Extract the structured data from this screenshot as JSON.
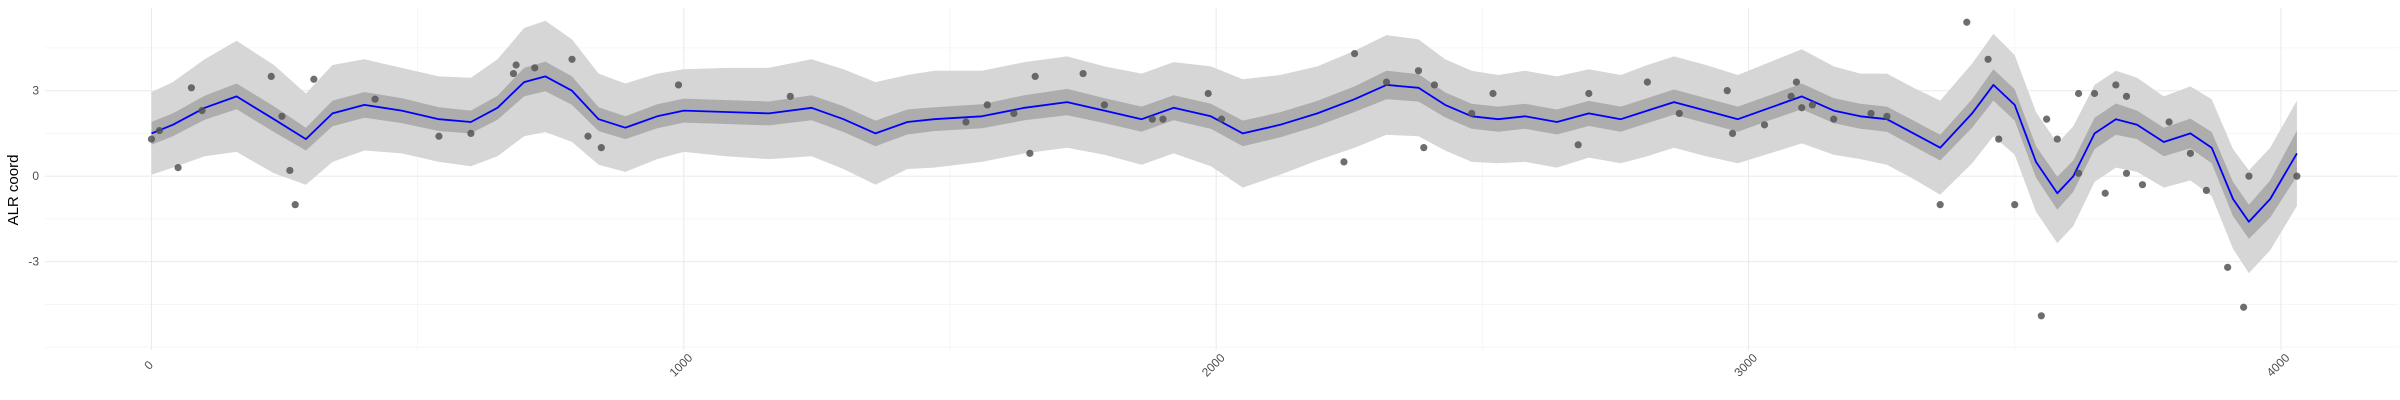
{
  "chart_data": {
    "type": "line",
    "title": "",
    "xlabel": "",
    "ylabel": "ALR coord",
    "xlim": [
      -200,
      4220
    ],
    "ylim": [
      -6.1,
      5.9
    ],
    "x_ticks": [
      0,
      1000,
      2000,
      3000,
      4000
    ],
    "y_ticks": [
      -3,
      0,
      3
    ],
    "grid": true,
    "legend": "none",
    "colors": {
      "line": "#0000ff",
      "inner_band": "#adadad",
      "outer_band": "#d6d6d6",
      "points": "#555555"
    },
    "line_series": {
      "x": [
        0,
        40,
        100,
        160,
        230,
        290,
        340,
        400,
        470,
        540,
        600,
        650,
        700,
        740,
        790,
        840,
        890,
        950,
        1000,
        1080,
        1160,
        1240,
        1300,
        1360,
        1420,
        1470,
        1560,
        1640,
        1720,
        1790,
        1860,
        1920,
        1990,
        2050,
        2120,
        2190,
        2260,
        2320,
        2380,
        2430,
        2480,
        2530,
        2580,
        2640,
        2700,
        2760,
        2810,
        2860,
        2920,
        2980,
        3040,
        3100,
        3160,
        3210,
        3260,
        3310,
        3360,
        3420,
        3460,
        3500,
        3540,
        3580,
        3610,
        3650,
        3690,
        3730,
        3780,
        3830,
        3870,
        3910,
        3940,
        3980,
        4030
      ],
      "y": [
        1.5,
        1.8,
        2.4,
        2.8,
        2.0,
        1.3,
        2.2,
        2.5,
        2.3,
        2.0,
        1.9,
        2.4,
        3.3,
        3.5,
        3.0,
        2.0,
        1.7,
        2.1,
        2.3,
        2.25,
        2.2,
        2.4,
        2.0,
        1.5,
        1.9,
        2.0,
        2.1,
        2.4,
        2.6,
        2.3,
        2.0,
        2.4,
        2.1,
        1.5,
        1.8,
        2.2,
        2.7,
        3.2,
        3.1,
        2.5,
        2.1,
        2.0,
        2.1,
        1.9,
        2.2,
        2.0,
        2.3,
        2.6,
        2.3,
        2.0,
        2.4,
        2.8,
        2.3,
        2.1,
        2.0,
        1.5,
        1.0,
        2.2,
        3.2,
        2.5,
        0.5,
        -0.6,
        0.0,
        1.5,
        2.0,
        1.8,
        1.2,
        1.5,
        1.0,
        -0.8,
        -1.6,
        -0.8,
        0.8
      ]
    },
    "inner_half_width": [
      0.4,
      0.4,
      0.42,
      0.45,
      0.45,
      0.4,
      0.45,
      0.45,
      0.44,
      0.42,
      0.4,
      0.42,
      0.5,
      0.52,
      0.5,
      0.42,
      0.4,
      0.42,
      0.42,
      0.42,
      0.42,
      0.44,
      0.45,
      0.45,
      0.44,
      0.42,
      0.42,
      0.44,
      0.46,
      0.44,
      0.44,
      0.44,
      0.44,
      0.45,
      0.44,
      0.44,
      0.45,
      0.5,
      0.48,
      0.44,
      0.44,
      0.44,
      0.44,
      0.44,
      0.44,
      0.44,
      0.44,
      0.44,
      0.44,
      0.44,
      0.44,
      0.45,
      0.44,
      0.44,
      0.44,
      0.45,
      0.45,
      0.5,
      0.55,
      0.55,
      0.55,
      0.58,
      0.55,
      0.55,
      0.55,
      0.5,
      0.5,
      0.52,
      0.55,
      0.6,
      0.6,
      0.65,
      0.8
    ],
    "outer_half_width": [
      1.45,
      1.5,
      1.7,
      1.95,
      1.9,
      1.6,
      1.7,
      1.6,
      1.5,
      1.5,
      1.55,
      1.7,
      1.9,
      1.95,
      1.8,
      1.6,
      1.55,
      1.5,
      1.45,
      1.55,
      1.6,
      1.7,
      1.75,
      1.8,
      1.65,
      1.7,
      1.6,
      1.6,
      1.6,
      1.55,
      1.6,
      1.6,
      1.75,
      1.9,
      1.75,
      1.65,
      1.7,
      1.75,
      1.7,
      1.6,
      1.6,
      1.55,
      1.6,
      1.6,
      1.55,
      1.55,
      1.6,
      1.6,
      1.6,
      1.55,
      1.6,
      1.65,
      1.55,
      1.5,
      1.6,
      1.6,
      1.65,
      1.75,
      1.8,
      1.75,
      1.75,
      1.75,
      1.75,
      1.7,
      1.7,
      1.65,
      1.6,
      1.65,
      1.7,
      1.75,
      1.8,
      1.8,
      1.85
    ],
    "points": {
      "x": [
        0,
        15,
        50,
        75,
        95,
        225,
        245,
        260,
        270,
        305,
        420,
        540,
        600,
        680,
        685,
        720,
        790,
        820,
        845,
        990,
        1200,
        1530,
        1570,
        1620,
        1650,
        1660,
        1750,
        1790,
        1880,
        1900,
        1985,
        2010,
        2240,
        2260,
        2320,
        2380,
        2390,
        2410,
        2480,
        2520,
        2680,
        2700,
        2810,
        2870,
        2960,
        2970,
        3030,
        3080,
        3090,
        3100,
        3120,
        3160,
        3230,
        3260,
        3360,
        3410,
        3450,
        3470,
        3500,
        3550,
        3560,
        3580,
        3620,
        3620,
        3650,
        3670,
        3690,
        3710,
        3710,
        3740,
        3790,
        3830,
        3860,
        3900,
        3930,
        3940,
        4030
      ],
      "y": [
        1.3,
        1.6,
        0.3,
        3.1,
        2.3,
        3.5,
        2.1,
        0.2,
        -1.0,
        3.4,
        2.7,
        1.4,
        1.5,
        3.6,
        3.9,
        3.8,
        4.1,
        1.4,
        1.0,
        3.2,
        2.8,
        1.9,
        2.5,
        2.2,
        0.8,
        3.5,
        3.6,
        2.5,
        2.0,
        2.0,
        2.9,
        2.0,
        0.5,
        4.3,
        3.3,
        3.7,
        1.0,
        3.2,
        2.2,
        2.9,
        1.1,
        2.9,
        3.3,
        2.2,
        3.0,
        1.5,
        1.8,
        2.8,
        3.3,
        2.4,
        2.5,
        2.0,
        2.2,
        2.1,
        -1.0,
        5.4,
        4.1,
        1.3,
        -1.0,
        -4.9,
        2.0,
        1.3,
        0.1,
        2.9,
        2.9,
        -0.6,
        3.2,
        0.1,
        2.8,
        -0.3,
        1.9,
        0.8,
        -0.5,
        -3.2,
        -4.6,
        0.0,
        0.0
      ]
    }
  }
}
